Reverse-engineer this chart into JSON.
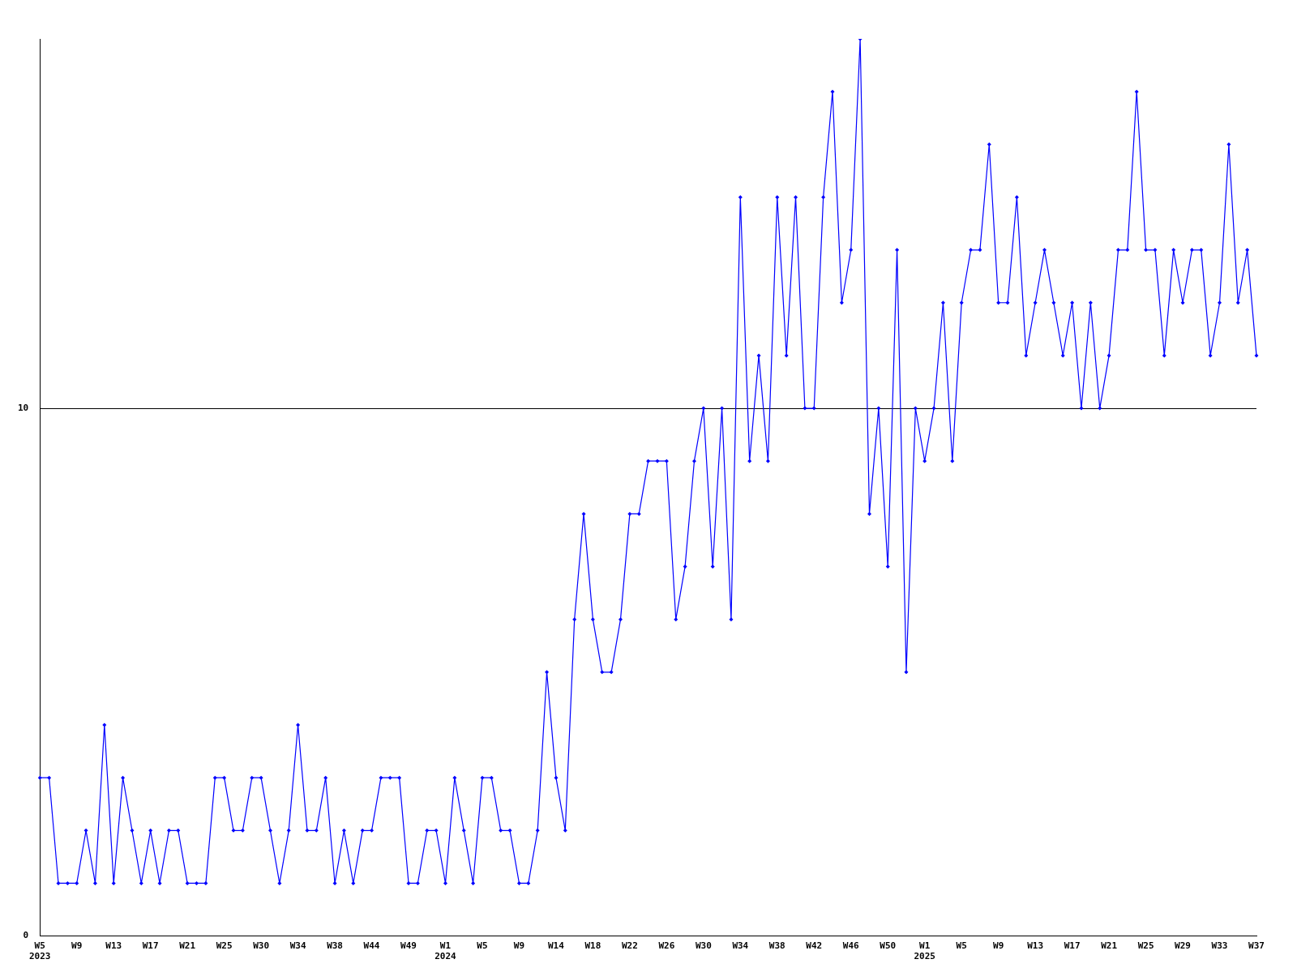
{
  "chart_data": {
    "type": "line",
    "categories": [
      "W5\n2023",
      null,
      null,
      null,
      "W9",
      null,
      null,
      null,
      "W13",
      null,
      null,
      null,
      "W17",
      null,
      null,
      null,
      "W21",
      null,
      null,
      null,
      "W25",
      null,
      null,
      null,
      "W30",
      null,
      null,
      null,
      "W34",
      null,
      null,
      null,
      "W38",
      null,
      null,
      null,
      "W44",
      null,
      null,
      null,
      "W49",
      null,
      null,
      null,
      "W1\n2024",
      null,
      null,
      null,
      "W5",
      null,
      null,
      null,
      "W9",
      null,
      null,
      null,
      "W14",
      null,
      null,
      null,
      "W18",
      null,
      null,
      null,
      "W22",
      null,
      null,
      null,
      "W26",
      null,
      null,
      null,
      "W30",
      null,
      null,
      null,
      "W34",
      null,
      null,
      null,
      "W38",
      null,
      null,
      null,
      "W42",
      null,
      null,
      null,
      "W46",
      null,
      null,
      null,
      "W50",
      null,
      null,
      null,
      "W1\n2025",
      null,
      null,
      null,
      "W5",
      null,
      null,
      null,
      "W9",
      null,
      null,
      null,
      "W13",
      null,
      null,
      null,
      "W17",
      null,
      null,
      null,
      "W21",
      null,
      null,
      null,
      "W25",
      null,
      null,
      null,
      "W29",
      null,
      null,
      null,
      "W33",
      null,
      null,
      null,
      "W37"
    ],
    "series": [
      {
        "color": "#0000ff",
        "values": [
          3,
          3,
          1,
          1,
          1,
          2,
          1,
          4,
          1,
          3,
          2,
          1,
          2,
          1,
          2,
          2,
          1,
          1,
          1,
          3,
          3,
          2,
          2,
          3,
          3,
          2,
          1,
          2,
          4,
          2,
          2,
          3,
          1,
          2,
          1,
          2,
          2,
          3,
          3,
          3,
          1,
          1,
          2,
          2,
          1,
          3,
          2,
          1,
          3,
          3,
          2,
          2,
          1,
          1,
          2,
          5,
          3,
          2,
          6,
          8,
          6,
          5,
          5,
          6,
          8,
          8,
          9,
          9,
          9,
          6,
          7,
          9,
          10,
          7,
          10,
          6,
          14,
          9,
          11,
          9,
          14,
          11,
          14,
          10,
          10,
          14,
          16,
          12,
          13,
          17,
          8,
          10,
          7,
          13,
          5,
          10,
          9,
          10,
          12,
          9,
          12,
          13,
          13,
          15,
          12,
          12,
          14,
          11,
          12,
          13,
          12,
          11,
          12,
          10,
          12,
          10,
          11,
          13,
          13,
          16,
          13,
          13,
          11,
          13,
          12,
          13,
          13,
          11,
          12,
          15,
          12,
          13,
          11
        ]
      }
    ],
    "ylim": [
      0,
      17
    ],
    "yticks": [
      0,
      10
    ],
    "grid": "y",
    "marker": "diamond",
    "line_style": "solid",
    "legend": false
  }
}
